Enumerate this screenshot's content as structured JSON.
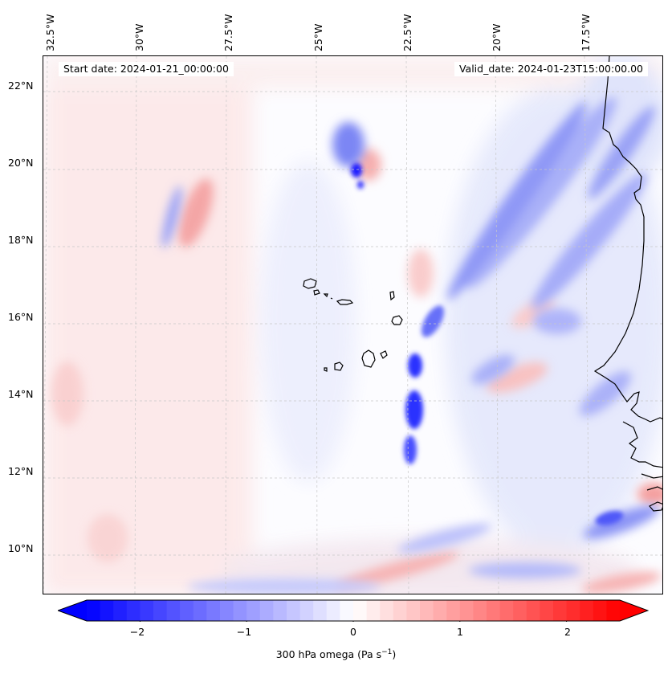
{
  "header": {
    "start_date": "Start date: 2024-01-21_00:00:00",
    "valid_date": "Valid_date: 2024-01-23T15:00:00.00"
  },
  "longitude_labels": [
    "32.5°W",
    "30°W",
    "27.5°W",
    "25°W",
    "22.5°W",
    "20°W",
    "17.5°W"
  ],
  "latitude_labels": [
    "22°N",
    "20°N",
    "18°N",
    "16°N",
    "14°N",
    "12°N",
    "10°N"
  ],
  "colorbar": {
    "ticks": [
      "−2",
      "−1",
      "0",
      "1",
      "2"
    ],
    "tick_values": [
      -2,
      -1,
      0,
      1,
      2
    ],
    "range": [
      -2.5,
      2.5
    ],
    "label": "300 hPa omega (Pa s",
    "label_sup": "−1",
    "label_end": ")",
    "colors": {
      "negative": "#0000ff",
      "zero": "#ffffff",
      "positive": "#ff0000"
    },
    "extend": "both"
  },
  "map": {
    "extent_lon": [
      -33,
      -15.5
    ],
    "extent_lat": [
      8.9,
      22.8
    ],
    "coastline_color": "#000000",
    "grid": "dashed light gray"
  }
}
